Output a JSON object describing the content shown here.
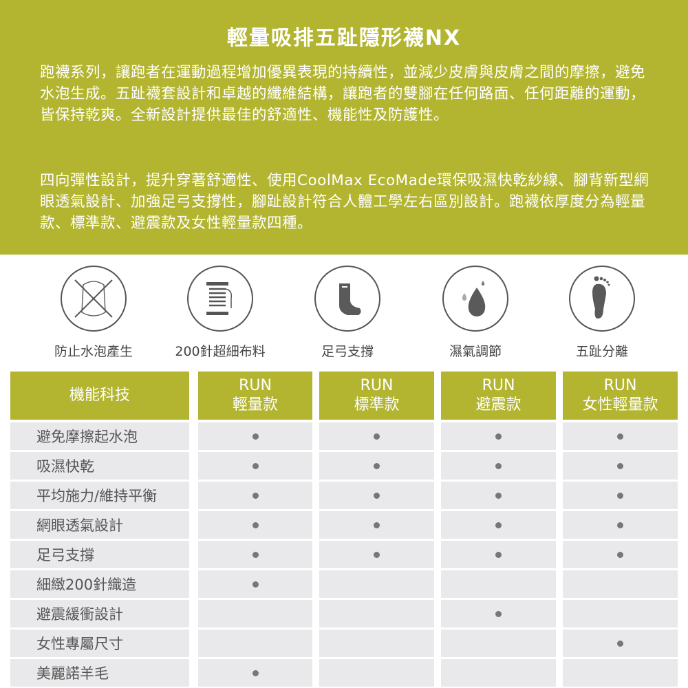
{
  "header": {
    "title": "輕量吸排五趾隱形襪NX",
    "paragraph1": "跑襪系列，讓跑者在運動過程增加優異表現的持續性，並減少皮膚與皮膚之間的摩擦，避免水泡生成。五趾襪套設計和卓越的纖維結構，讓跑者的雙腳在任何路面、任何距離的運動，皆保持乾爽。全新設計提供最佳的舒適性、機能性及防護性。",
    "paragraph2": "四向彈性設計，提升穿著舒適性、使用CoolMax EcoMade環保吸濕快乾紗線、腳背新型網眼透氣設計、加強足弓支撐性，腳趾設計符合人體工學左右區別設計。跑襪依厚度分為輕量款、標準款、避震款及女性輕量款四種。"
  },
  "features": [
    {
      "icon": "no-blister-icon",
      "label": "防止水泡產生"
    },
    {
      "icon": "thread-spool-icon",
      "label": "200針超細布料"
    },
    {
      "icon": "sock-icon",
      "label": "足弓支撐"
    },
    {
      "icon": "water-drop-icon",
      "label": "濕氣調節"
    },
    {
      "icon": "footprint-icon",
      "label": "五趾分離"
    }
  ],
  "table": {
    "header": "機能科技",
    "columns": [
      {
        "line1": "RUN",
        "line2": "輕量款"
      },
      {
        "line1": "RUN",
        "line2": "標準款"
      },
      {
        "line1": "RUN",
        "line2": "避震款"
      },
      {
        "line1": "RUN",
        "line2": "女性輕量款"
      }
    ],
    "rows": [
      {
        "label": "避免摩擦起水泡",
        "marks": [
          true,
          true,
          true,
          true
        ]
      },
      {
        "label": "吸濕快乾",
        "marks": [
          true,
          true,
          true,
          true
        ]
      },
      {
        "label": "平均施力/維持平衡",
        "marks": [
          true,
          true,
          true,
          true
        ]
      },
      {
        "label": "網眼透氣設計",
        "marks": [
          true,
          true,
          true,
          true
        ]
      },
      {
        "label": "足弓支撐",
        "marks": [
          true,
          true,
          true,
          true
        ]
      },
      {
        "label": "細緻200針織造",
        "marks": [
          true,
          false,
          false,
          false
        ]
      },
      {
        "label": "避震緩衝設計",
        "marks": [
          false,
          false,
          true,
          false
        ]
      },
      {
        "label": "女性專屬尺寸",
        "marks": [
          false,
          false,
          false,
          true
        ]
      },
      {
        "label": "美麗諾羊毛",
        "marks": [
          true,
          false,
          false,
          false
        ]
      }
    ]
  },
  "colors": {
    "accent": "#b3b531",
    "cell": "#e9e9eb"
  }
}
